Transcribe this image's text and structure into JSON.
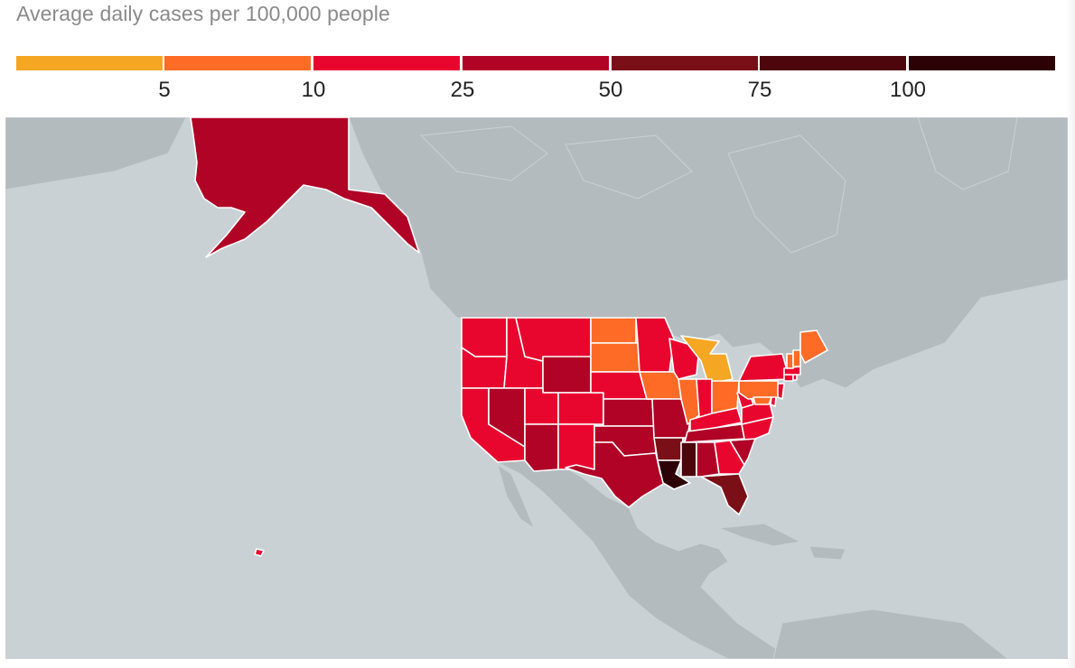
{
  "title": "Average daily cases per 100,000 people",
  "legend": {
    "colors": [
      "#f5a623",
      "#fd6b26",
      "#e8062f",
      "#b00325",
      "#7a0f17",
      "#4d060c",
      "#2d0207"
    ],
    "ticks": [
      "5",
      "10",
      "25",
      "50",
      "75",
      "100"
    ]
  },
  "regions": [
    {
      "id": "AK",
      "bin": 3
    },
    {
      "id": "HI",
      "bin": 2
    },
    {
      "id": "WA",
      "bin": 2
    },
    {
      "id": "OR",
      "bin": 2
    },
    {
      "id": "CA",
      "bin": 2
    },
    {
      "id": "ID",
      "bin": 2
    },
    {
      "id": "NV",
      "bin": 3
    },
    {
      "id": "MT",
      "bin": 2
    },
    {
      "id": "WY",
      "bin": 3
    },
    {
      "id": "UT",
      "bin": 2
    },
    {
      "id": "AZ",
      "bin": 3
    },
    {
      "id": "CO",
      "bin": 2
    },
    {
      "id": "NM",
      "bin": 2
    },
    {
      "id": "ND",
      "bin": 1
    },
    {
      "id": "SD",
      "bin": 1
    },
    {
      "id": "NE",
      "bin": 2
    },
    {
      "id": "KS",
      "bin": 3
    },
    {
      "id": "OK",
      "bin": 3
    },
    {
      "id": "TX",
      "bin": 3
    },
    {
      "id": "MN",
      "bin": 2
    },
    {
      "id": "IA",
      "bin": 1
    },
    {
      "id": "MO",
      "bin": 3
    },
    {
      "id": "AR",
      "bin": 4
    },
    {
      "id": "LA",
      "bin": 6
    },
    {
      "id": "WI",
      "bin": 2
    },
    {
      "id": "IL",
      "bin": 1
    },
    {
      "id": "MI",
      "bin": 0
    },
    {
      "id": "IN",
      "bin": 2
    },
    {
      "id": "OH",
      "bin": 1
    },
    {
      "id": "KY",
      "bin": 2
    },
    {
      "id": "TN",
      "bin": 3
    },
    {
      "id": "MS",
      "bin": 5
    },
    {
      "id": "AL",
      "bin": 3
    },
    {
      "id": "GA",
      "bin": 2
    },
    {
      "id": "FL",
      "bin": 4
    },
    {
      "id": "SC",
      "bin": 3
    },
    {
      "id": "NC",
      "bin": 2
    },
    {
      "id": "VA",
      "bin": 2
    },
    {
      "id": "WV",
      "bin": 2
    },
    {
      "id": "PA",
      "bin": 1
    },
    {
      "id": "NY",
      "bin": 2
    },
    {
      "id": "NJ",
      "bin": 2
    },
    {
      "id": "MD",
      "bin": 1
    },
    {
      "id": "DE",
      "bin": 2
    },
    {
      "id": "CT",
      "bin": 2
    },
    {
      "id": "RI",
      "bin": 2
    },
    {
      "id": "MA",
      "bin": 2
    },
    {
      "id": "VT",
      "bin": 1
    },
    {
      "id": "NH",
      "bin": 1
    },
    {
      "id": "ME",
      "bin": 1
    }
  ]
}
